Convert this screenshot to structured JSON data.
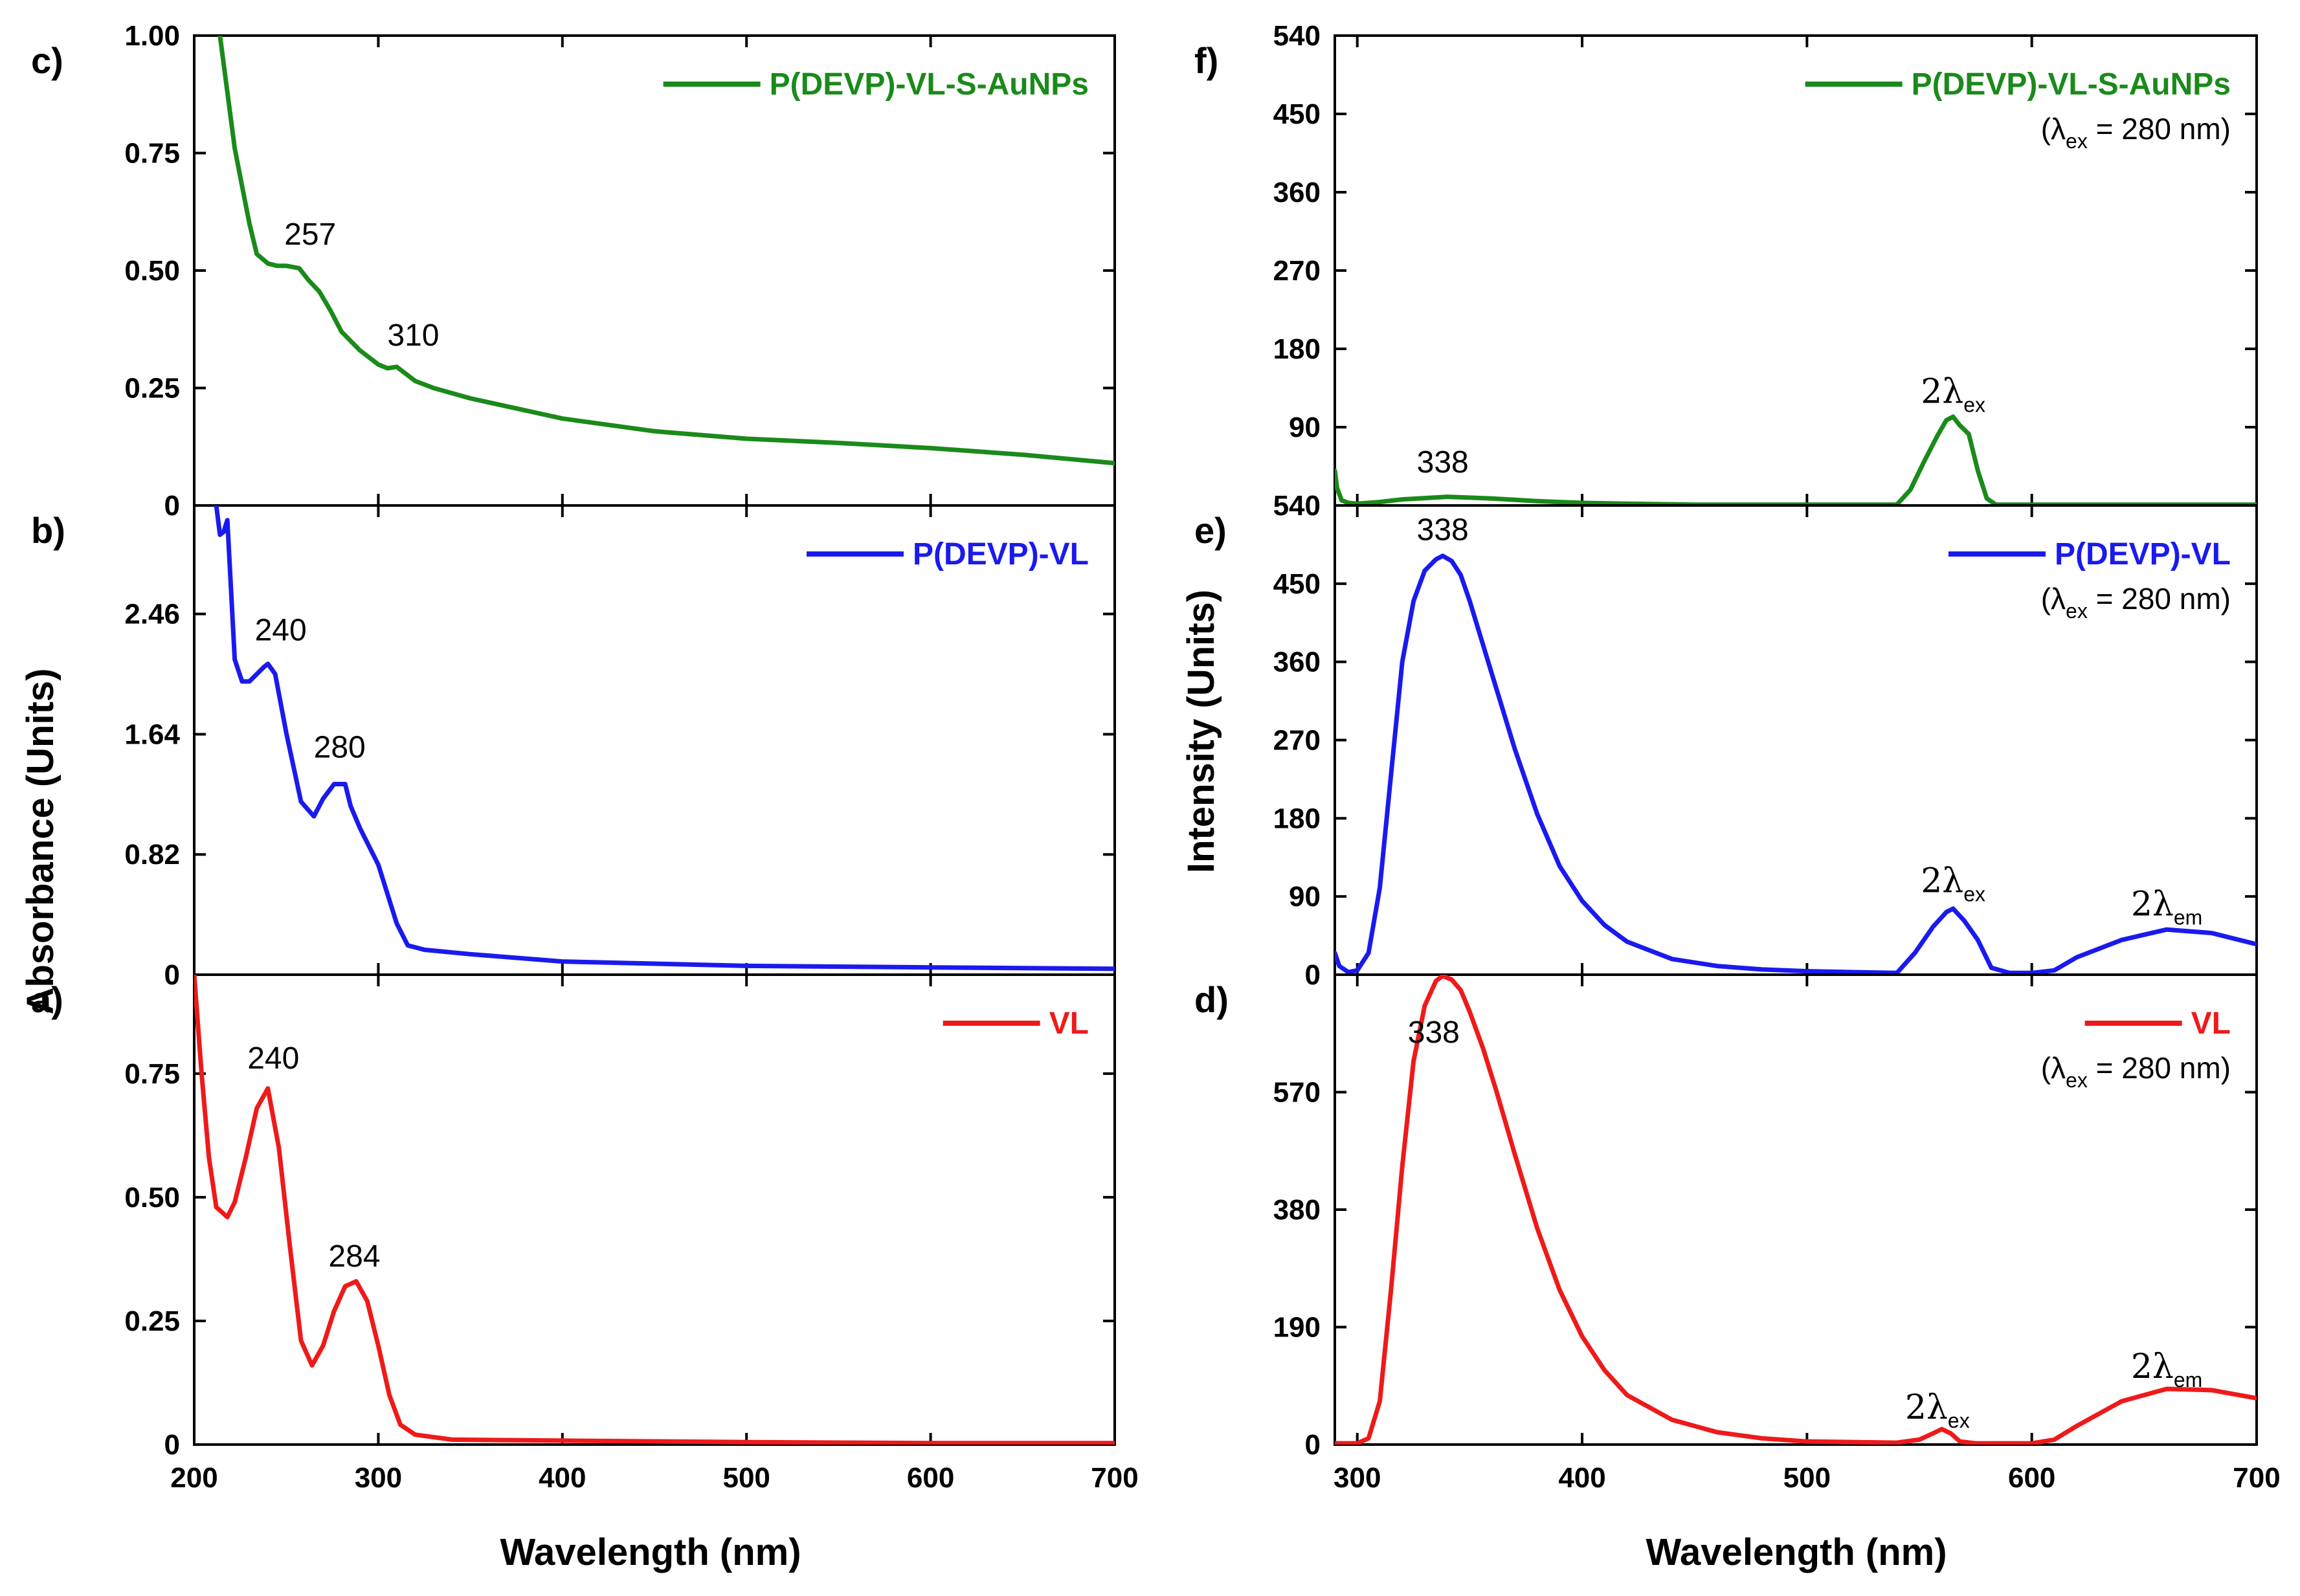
{
  "chart_data": {
    "type": "line",
    "left_column": {
      "ylabel": "Absorbance (Units)",
      "xlabel": "Wavelength (nm)",
      "xlim": [
        200,
        700
      ],
      "xticks": [
        "200",
        "300",
        "400",
        "500",
        "600",
        "700"
      ],
      "panels": [
        {
          "tag": "c)",
          "legend": "P(DEVP)-VL-S-AuNPs",
          "color": "#1a8a1a",
          "ylim": [
            0,
            1.0
          ],
          "yticks": [
            "0",
            "0.25",
            "0.50",
            "0.75",
            "1.00"
          ],
          "ytick_values": [
            0,
            0.25,
            0.5,
            0.75,
            1.0
          ],
          "x": [
            214,
            218,
            222,
            226,
            230,
            234,
            240,
            245,
            250,
            257,
            262,
            268,
            274,
            280,
            290,
            300,
            305,
            310,
            315,
            320,
            330,
            350,
            400,
            450,
            500,
            550,
            600,
            650,
            700
          ],
          "y": [
            1.0,
            0.88,
            0.76,
            0.68,
            0.6,
            0.535,
            0.515,
            0.51,
            0.51,
            0.505,
            0.48,
            0.455,
            0.415,
            0.37,
            0.33,
            0.3,
            0.292,
            0.295,
            0.28,
            0.265,
            0.25,
            0.228,
            0.185,
            0.158,
            0.142,
            0.133,
            0.122,
            0.108,
            0.09
          ],
          "annotations": [
            {
              "text": "257",
              "x": 263,
              "y": 0.555
            },
            {
              "text": "310",
              "x": 319,
              "y": 0.34
            }
          ]
        },
        {
          "tag": "b)",
          "legend": "P(DEVP)-VL",
          "color": "#1a1aee",
          "ylim": [
            0,
            3.2
          ],
          "yticks": [
            "0",
            "0.82",
            "1.64",
            "2.46"
          ],
          "ytick_values": [
            0,
            0.82,
            1.64,
            2.46
          ],
          "x": [
            212,
            214,
            216,
            218,
            222,
            226,
            230,
            234,
            238,
            240,
            244,
            250,
            258,
            265,
            270,
            276,
            282,
            285,
            290,
            300,
            310,
            316,
            325,
            350,
            400,
            500,
            600,
            700
          ],
          "y": [
            3.2,
            3.0,
            3.02,
            3.1,
            2.15,
            2.0,
            2.0,
            2.05,
            2.1,
            2.12,
            2.05,
            1.65,
            1.18,
            1.08,
            1.2,
            1.3,
            1.3,
            1.15,
            1.0,
            0.75,
            0.35,
            0.2,
            0.17,
            0.14,
            0.09,
            0.06,
            0.05,
            0.04
          ],
          "annotations": [
            {
              "text": "240",
              "x": 247,
              "y": 2.28
            },
            {
              "text": "280",
              "x": 279,
              "y": 1.48
            }
          ]
        },
        {
          "tag": "a)",
          "legend": "VL",
          "color": "#ee1a1a",
          "ylim": [
            0,
            0.95
          ],
          "yticks": [
            "0",
            "0.25",
            "0.50",
            "0.75"
          ],
          "ytick_values": [
            0,
            0.25,
            0.5,
            0.75
          ],
          "x": [
            200,
            204,
            208,
            212,
            218,
            222,
            228,
            234,
            240,
            246,
            252,
            258,
            264,
            270,
            276,
            282,
            288,
            294,
            300,
            306,
            312,
            320,
            340,
            400,
            500,
            600,
            700
          ],
          "y": [
            0.95,
            0.75,
            0.58,
            0.48,
            0.46,
            0.49,
            0.58,
            0.68,
            0.72,
            0.6,
            0.4,
            0.21,
            0.16,
            0.2,
            0.27,
            0.32,
            0.33,
            0.29,
            0.2,
            0.1,
            0.04,
            0.02,
            0.01,
            0.008,
            0.005,
            0.003,
            0.003
          ],
          "annotations": [
            {
              "text": "240",
              "x": 243,
              "y": 0.76
            },
            {
              "text": "284",
              "x": 287,
              "y": 0.36
            }
          ]
        }
      ]
    },
    "right_column": {
      "ylabel": "Intensity (Units)",
      "xlabel": "Wavelength (nm)",
      "xlim": [
        290,
        700
      ],
      "xticks": [
        "300",
        "400",
        "500",
        "600",
        "700"
      ],
      "panels": [
        {
          "tag": "f)",
          "legend": "P(DEVP)-VL-S-AuNPs",
          "note_prefix": "(λ",
          "note_sub": "ex",
          "note_suffix": " = 280 nm)",
          "color": "#1a8a1a",
          "ylim": [
            0,
            540
          ],
          "yticks": [
            "90",
            "180",
            "270",
            "360",
            "450",
            "540"
          ],
          "ytick_values": [
            90,
            180,
            270,
            360,
            450,
            540
          ],
          "x": [
            290,
            291,
            293,
            296,
            300,
            310,
            320,
            340,
            360,
            380,
            400,
            420,
            450,
            500,
            540,
            546,
            552,
            558,
            562,
            565,
            568,
            572,
            576,
            580,
            584,
            600,
            650,
            700
          ],
          "y": [
            40,
            20,
            6,
            3,
            2,
            4,
            7,
            10,
            8,
            5,
            3,
            2,
            1,
            1,
            1,
            18,
            50,
            80,
            98,
            102,
            92,
            82,
            40,
            8,
            1,
            1,
            1,
            1
          ],
          "annotations": [
            {
              "text": "338",
              "x": 338,
              "y": 38,
              "kind": "plain"
            },
            {
              "text": "2λ",
              "sub": "ex",
              "x": 565,
              "y": 118,
              "kind": "harmonic"
            }
          ]
        },
        {
          "tag": "e)",
          "legend": "P(DEVP)-VL",
          "note_prefix": "(λ",
          "note_sub": "ex",
          "note_suffix": " = 280 nm)",
          "color": "#1a1aee",
          "ylim": [
            0,
            540
          ],
          "yticks": [
            "0",
            "90",
            "180",
            "270",
            "360",
            "450",
            "540"
          ],
          "ytick_values": [
            0,
            90,
            180,
            270,
            360,
            450,
            540
          ],
          "x": [
            290,
            292,
            296,
            300,
            305,
            310,
            315,
            320,
            325,
            330,
            335,
            338,
            342,
            346,
            350,
            360,
            370,
            380,
            390,
            400,
            410,
            420,
            440,
            460,
            480,
            500,
            520,
            540,
            548,
            556,
            562,
            565,
            570,
            576,
            582,
            590,
            600,
            610,
            620,
            640,
            660,
            680,
            700
          ],
          "y": [
            25,
            10,
            3,
            5,
            25,
            100,
            230,
            360,
            430,
            465,
            478,
            482,
            476,
            460,
            430,
            345,
            260,
            185,
            125,
            85,
            57,
            38,
            18,
            10,
            6,
            4,
            3,
            2,
            25,
            55,
            72,
            76,
            62,
            40,
            8,
            2,
            2,
            5,
            20,
            40,
            52,
            48,
            35
          ],
          "annotations": [
            {
              "text": "338",
              "x": 338,
              "y": 500,
              "kind": "plain"
            },
            {
              "text": "2λ",
              "sub": "ex",
              "x": 565,
              "y": 95,
              "kind": "harmonic"
            },
            {
              "text": "2λ",
              "sub": "em",
              "x": 660,
              "y": 68,
              "kind": "harmonic"
            }
          ]
        },
        {
          "tag": "d)",
          "legend": "VL",
          "note_prefix": "(λ",
          "note_sub": "ex",
          "note_suffix": " = 280 nm)",
          "color": "#ee1a1a",
          "ylim": [
            0,
            760
          ],
          "yticks": [
            "0",
            "190",
            "380",
            "570"
          ],
          "ytick_values": [
            0,
            190,
            380,
            570
          ],
          "x": [
            290,
            300,
            305,
            310,
            315,
            320,
            325,
            330,
            335,
            338,
            342,
            346,
            350,
            356,
            362,
            370,
            380,
            390,
            400,
            410,
            420,
            440,
            460,
            480,
            500,
            540,
            550,
            556,
            560,
            564,
            568,
            575,
            600,
            610,
            620,
            640,
            660,
            680,
            700
          ],
          "y": [
            2,
            2,
            10,
            70,
            250,
            450,
            620,
            710,
            750,
            758,
            752,
            735,
            700,
            640,
            570,
            470,
            350,
            250,
            175,
            120,
            80,
            40,
            20,
            10,
            5,
            3,
            8,
            18,
            25,
            18,
            5,
            2,
            2,
            8,
            30,
            70,
            90,
            88,
            75
          ],
          "annotations": [
            {
              "text": "338",
              "x": 334,
              "y": 650,
              "kind": "plain"
            },
            {
              "text": "2λ",
              "sub": "ex",
              "x": 558,
              "y": 42,
              "kind": "harmonic"
            },
            {
              "text": "2λ",
              "sub": "em",
              "x": 660,
              "y": 108,
              "kind": "harmonic"
            }
          ]
        }
      ]
    }
  }
}
